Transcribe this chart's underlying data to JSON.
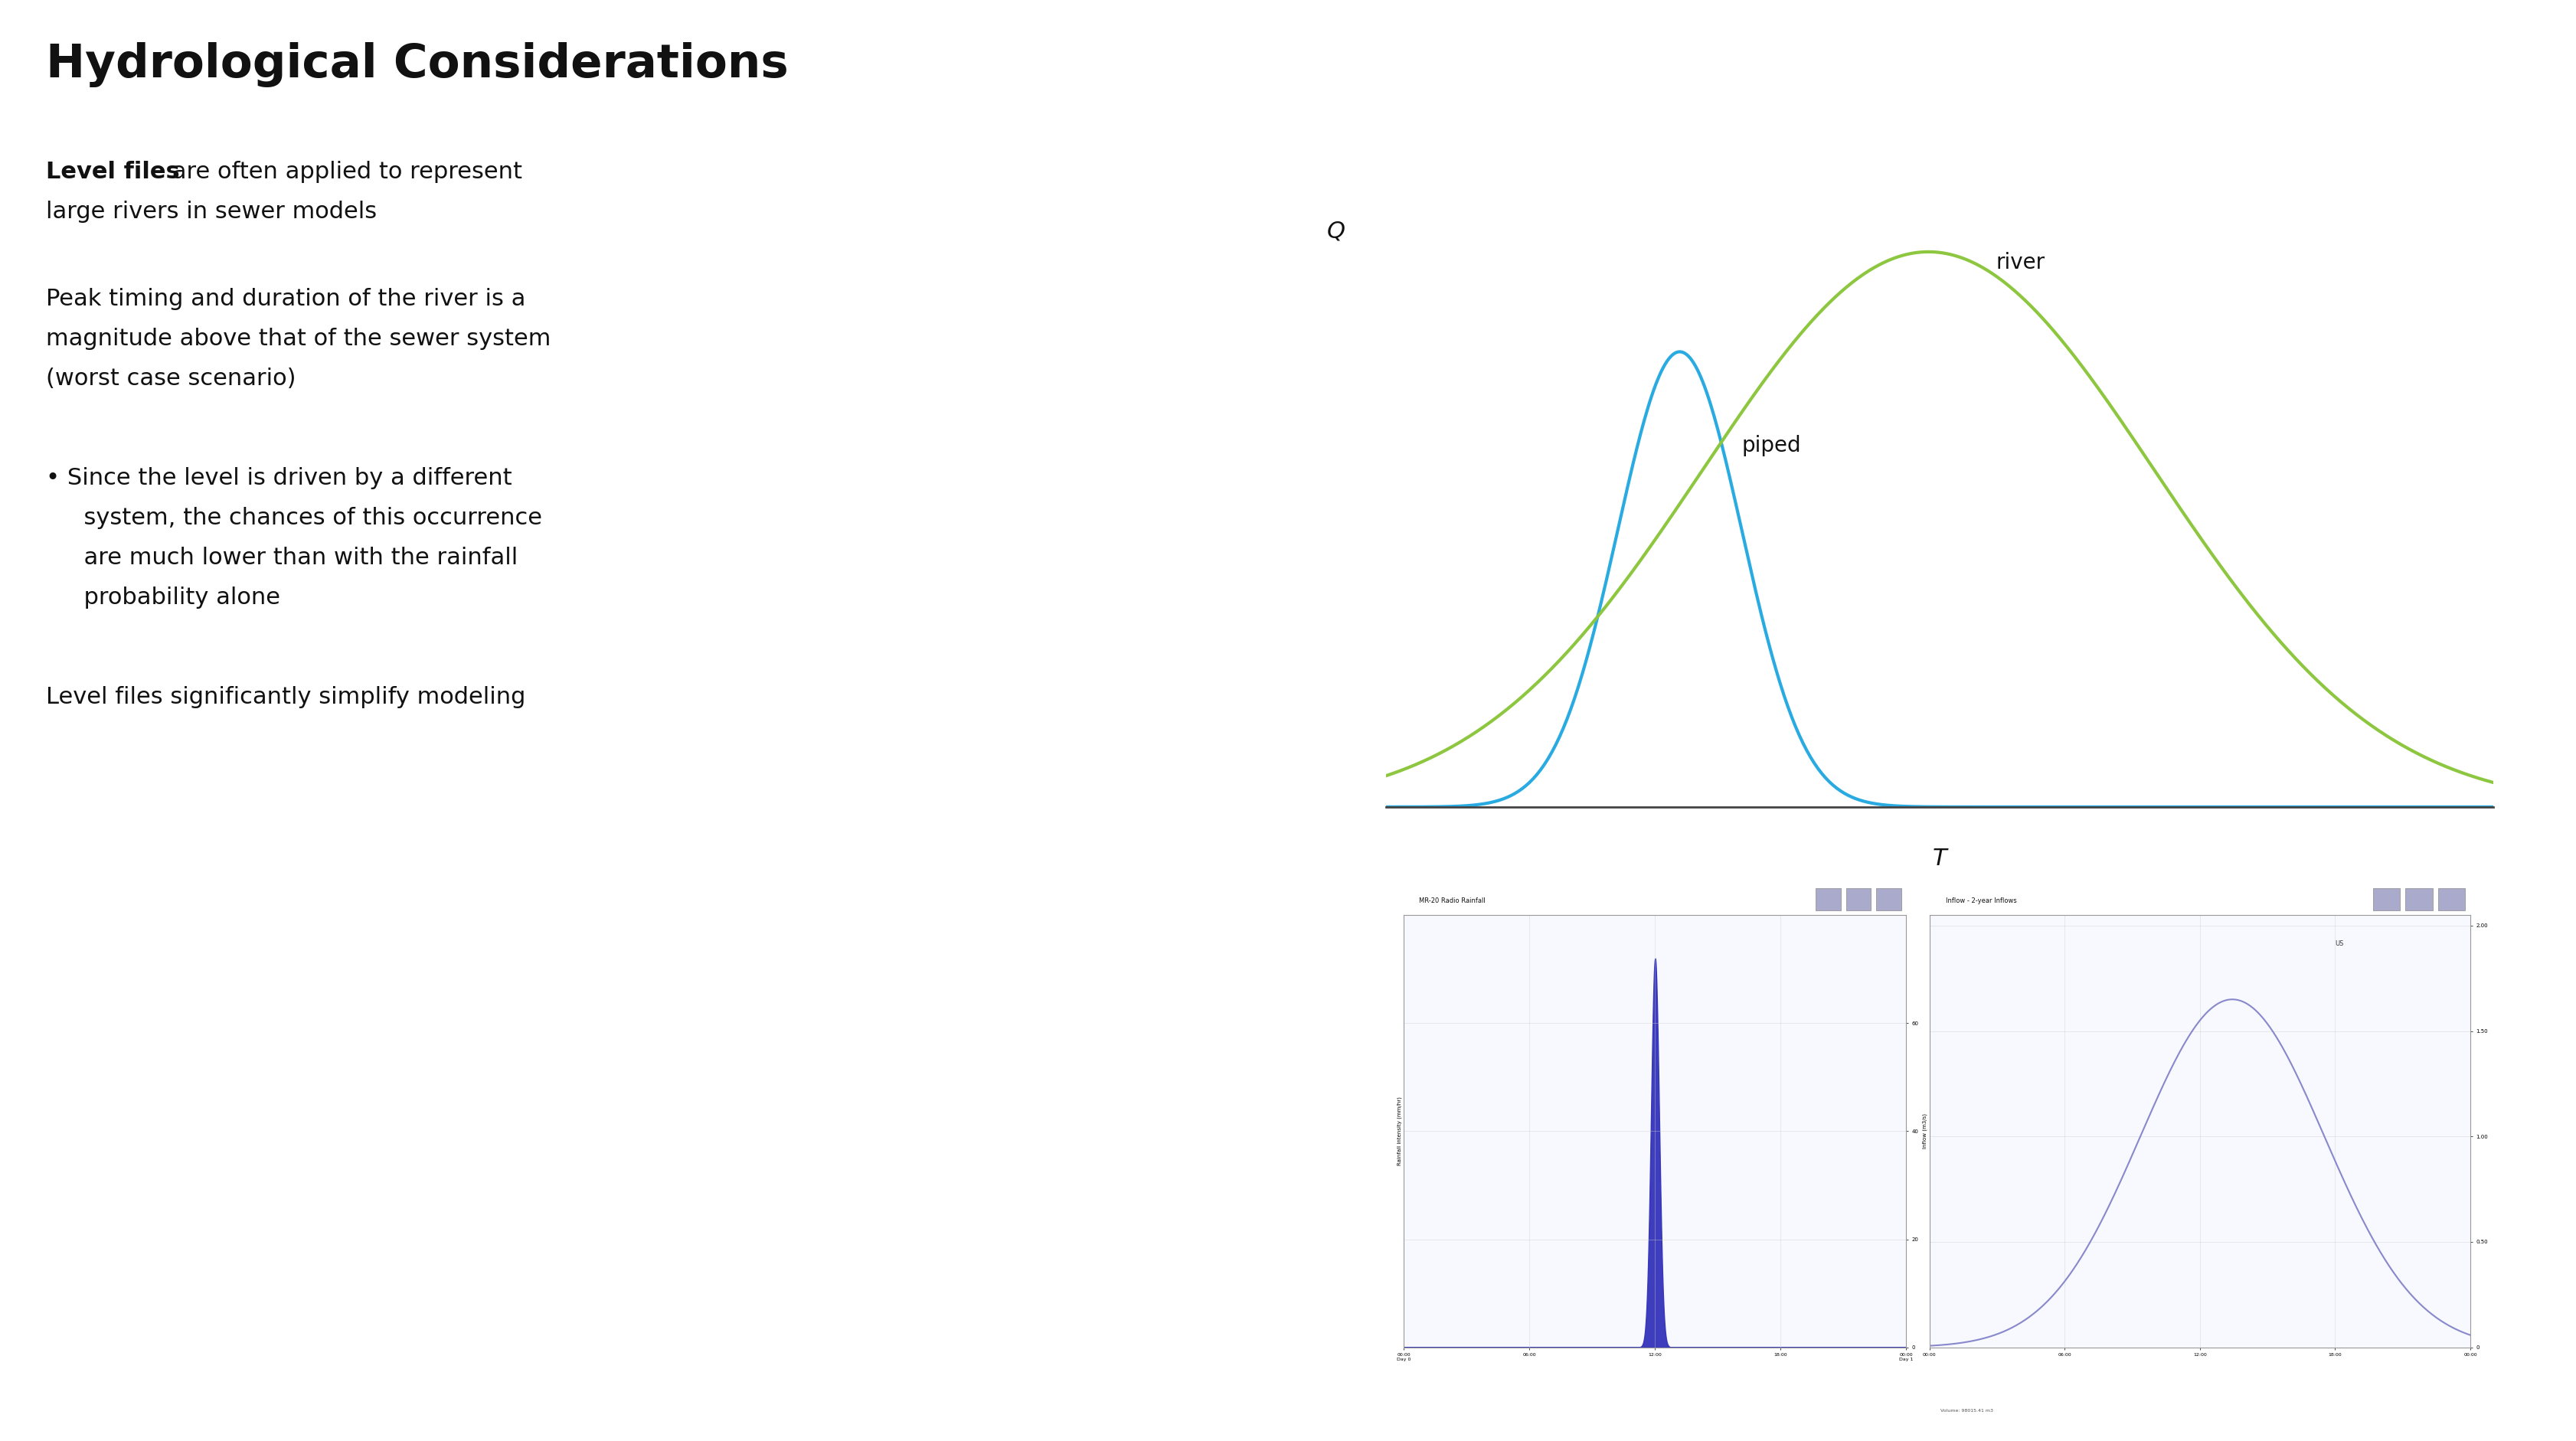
{
  "title": "Hydrological Considerations",
  "bg_color": "#ffffff",
  "text_color": "#111111",
  "title_fontsize": 44,
  "body_fontsize": 22,
  "small_fontsize": 8,
  "bold_text": "Level files",
  "line1_rest": " are often applied to represent",
  "line2": "large rivers in sewer models",
  "para2_line1": "Peak timing and duration of the river is a",
  "para2_line2": "magnitude above that of the sewer system",
  "para2_line3": "(worst case scenario)",
  "bullet1_line1": "Since the level is driven by a different",
  "bullet1_line2": "  system, the chances of this occurrence",
  "bullet1_line3": "  are much lower than with the rainfall",
  "bullet1_line4": "  probability alone",
  "footer": "Level files significantly simplify modeling",
  "river_color": "#8dc63f",
  "piped_color": "#29abe2",
  "curve_label_river": "river",
  "curve_label_piped": "piped",
  "axis_label_q": "Q",
  "axis_label_t": "T",
  "screenshot_bg": "#d4d4e0",
  "panel_bg": "#f0f0f8",
  "panel_border": "#999999",
  "titlebar_color": "#c0c0d8",
  "spike_color": "#3333bb",
  "inflow_color": "#8888cc"
}
